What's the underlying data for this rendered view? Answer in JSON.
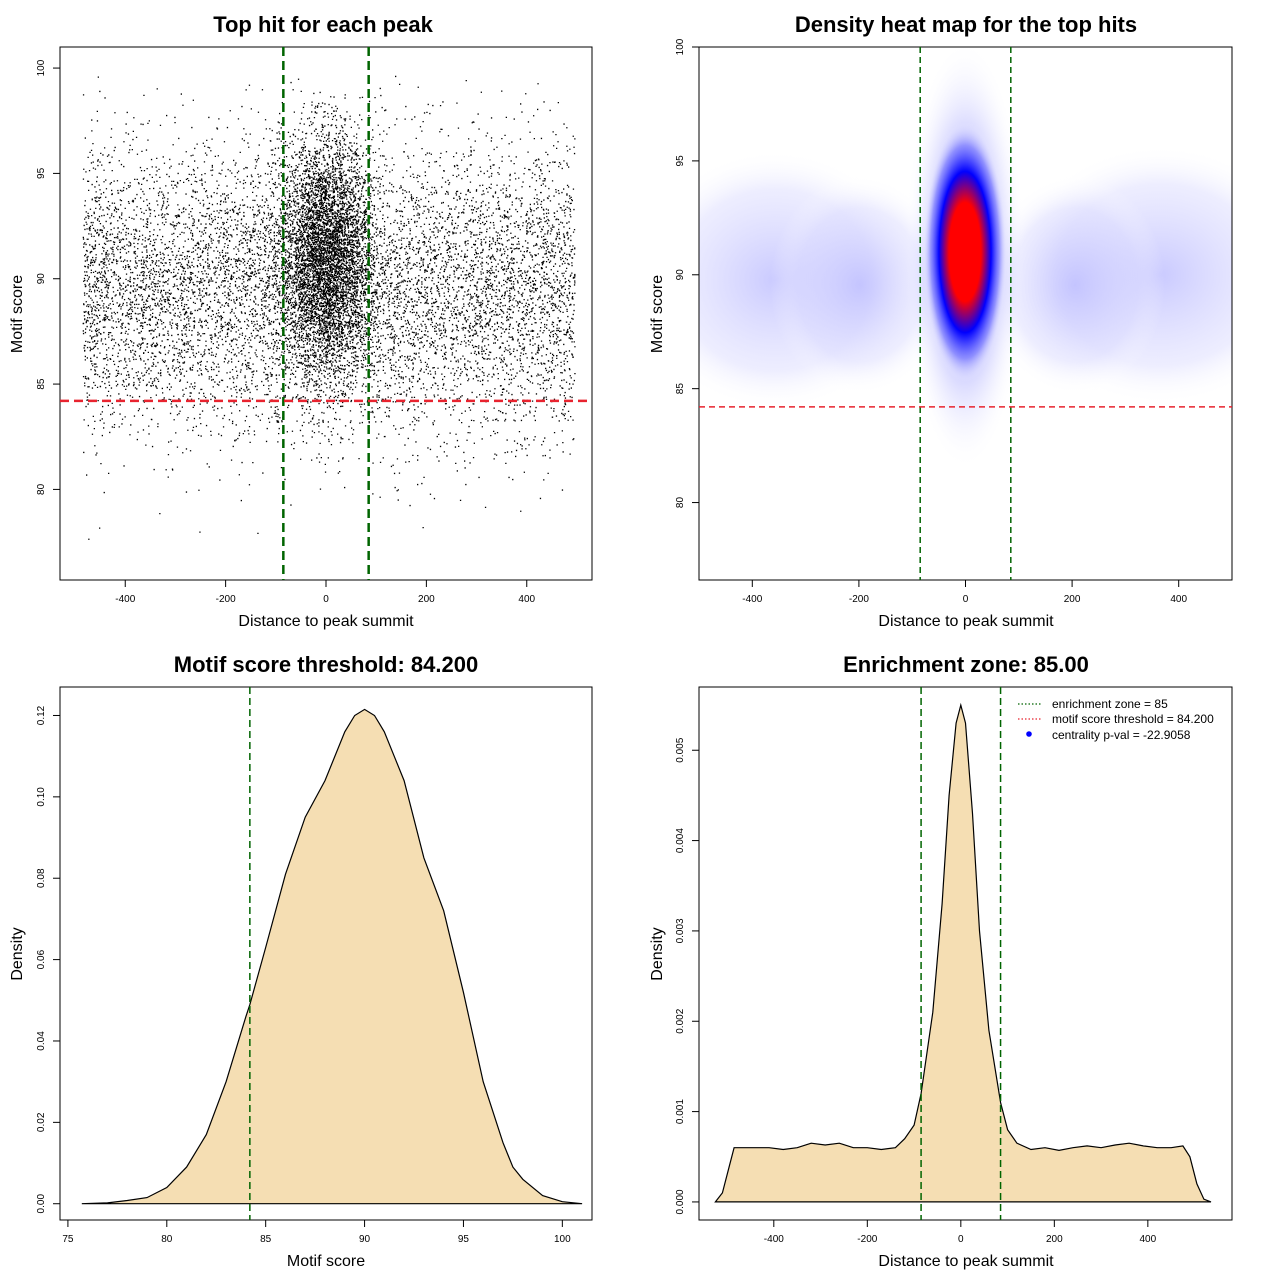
{
  "colors": {
    "threshold_line": "#e8232f",
    "zone_line": "#006400",
    "density_fill": "#f5deb3",
    "heat_low": "#ffffff",
    "heat_mid": "#0000ff",
    "heat_high": "#ff0000",
    "legend_point": "#0000ff"
  },
  "chart_data": [
    {
      "type": "scatter",
      "title": "Top hit for each peak",
      "xlabel": "Distance to peak summit",
      "ylabel": "Motif score",
      "xlim": [
        -530,
        530
      ],
      "ylim": [
        75.7,
        101.0
      ],
      "xticks": [
        "-400",
        "-200",
        "0",
        "200",
        "400"
      ],
      "yticks": [
        "80",
        "85",
        "90",
        "95",
        "100"
      ],
      "hlines": [
        84.2
      ],
      "vlines": [
        -85,
        85
      ],
      "points_summary": {
        "background": {
          "x_range": [
            -485,
            495
          ],
          "score_mean": 89.5,
          "score_sd": 3.4
        },
        "central_cluster": {
          "x_center": 0,
          "x_sd": 45,
          "score_mean": 91.0,
          "score_sd": 2.8
        },
        "max_score_near_center": 99.8,
        "min_score": 76.5
      },
      "grid": false
    },
    {
      "type": "heatmap",
      "title": "Density heat map for the top hits",
      "xlabel": "Distance to peak summit",
      "ylabel": "Motif score",
      "xlim": [
        -500,
        500
      ],
      "ylim": [
        76.6,
        100.0
      ],
      "xticks": [
        "-400",
        "-200",
        "0",
        "200",
        "400"
      ],
      "yticks": [
        "80",
        "85",
        "90",
        "95",
        "100"
      ],
      "hlines": [
        84.2
      ],
      "vlines": [
        -85,
        85
      ],
      "density_peak": {
        "x": 0,
        "y": 92.0
      },
      "colormap": [
        "white",
        "blue",
        "red"
      ],
      "grid": false
    },
    {
      "type": "area",
      "title": "Motif score threshold: 84.200",
      "xlabel": "Motif score",
      "ylabel": "Density",
      "xlim": [
        74.6,
        101.5
      ],
      "ylim": [
        -0.004,
        0.127
      ],
      "xticks": [
        "75",
        "80",
        "85",
        "90",
        "95",
        "100"
      ],
      "yticks": [
        "0.00",
        "0.02",
        "0.04",
        "0.06",
        "0.08",
        "0.10",
        "0.12"
      ],
      "vlines": [
        84.2
      ],
      "x": [
        75.7,
        77,
        78,
        79,
        80,
        81,
        82,
        83,
        84,
        84.2,
        85,
        86,
        87,
        88,
        89,
        89.5,
        90,
        90.5,
        91,
        91.5,
        92,
        93,
        94,
        95,
        96,
        97,
        97.5,
        98,
        99,
        100,
        101.0
      ],
      "y": [
        0.0,
        0.0002,
        0.0008,
        0.0015,
        0.004,
        0.009,
        0.017,
        0.03,
        0.046,
        0.049,
        0.063,
        0.081,
        0.095,
        0.104,
        0.116,
        0.12,
        0.1215,
        0.12,
        0.116,
        0.11,
        0.104,
        0.085,
        0.072,
        0.052,
        0.03,
        0.015,
        0.009,
        0.006,
        0.002,
        0.0005,
        0.0
      ],
      "grid": false
    },
    {
      "type": "area",
      "title": "Enrichment zone: 85.00",
      "xlabel": "Distance to peak summit",
      "ylabel": "Density",
      "xlim": [
        -560,
        580
      ],
      "ylim": [
        -0.0002,
        0.0057
      ],
      "xticks": [
        "-400",
        "-200",
        "0",
        "200",
        "400"
      ],
      "yticks": [
        "0.000",
        "0.001",
        "0.002",
        "0.003",
        "0.004",
        "0.005"
      ],
      "vlines": [
        -85,
        85
      ],
      "x": [
        -525,
        -510,
        -495,
        -485,
        -470,
        -440,
        -410,
        -380,
        -350,
        -320,
        -290,
        -260,
        -230,
        -200,
        -170,
        -140,
        -120,
        -100,
        -85,
        -60,
        -40,
        -25,
        -10,
        0,
        10,
        25,
        40,
        60,
        85,
        100,
        120,
        150,
        180,
        210,
        240,
        270,
        300,
        330,
        360,
        390,
        420,
        450,
        475,
        490,
        505,
        520,
        535
      ],
      "y": [
        0.0,
        0.0001,
        0.0004,
        0.0006,
        0.0006,
        0.0006,
        0.0006,
        0.00058,
        0.0006,
        0.00065,
        0.00063,
        0.00065,
        0.0006,
        0.0006,
        0.00058,
        0.0006,
        0.0007,
        0.00085,
        0.0012,
        0.0021,
        0.0033,
        0.0045,
        0.0053,
        0.0055,
        0.0053,
        0.0043,
        0.003,
        0.0019,
        0.0011,
        0.0008,
        0.00065,
        0.00058,
        0.0006,
        0.00057,
        0.0006,
        0.00062,
        0.0006,
        0.00063,
        0.00065,
        0.00062,
        0.0006,
        0.0006,
        0.00062,
        0.0005,
        0.0002,
        3e-05,
        0.0
      ],
      "legend": {
        "position": "top-right",
        "entries": [
          {
            "label": "enrichment zone = 85",
            "style": "dotted",
            "color": "#006400"
          },
          {
            "label": "motif score threshold = 84.200",
            "style": "dotted",
            "color": "#e8232f"
          },
          {
            "label": "centrality p-val = -22.9058",
            "style": "point",
            "color": "#0000ff"
          }
        ]
      },
      "grid": false
    }
  ]
}
